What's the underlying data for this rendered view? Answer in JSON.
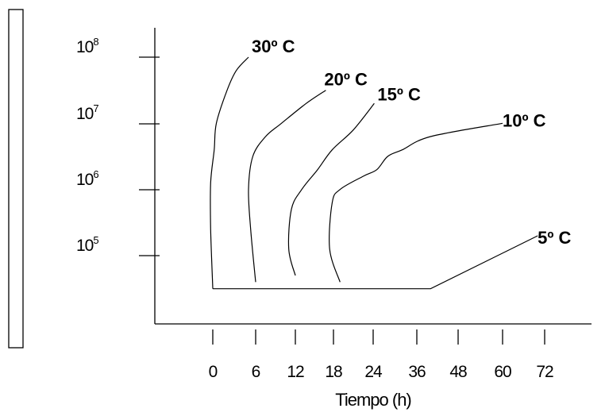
{
  "chart_data": {
    "type": "line",
    "xlabel": "Tiempo (h)",
    "ylabel": "",
    "x_ticks": [
      "0",
      "6",
      "12",
      "18",
      "24",
      "36",
      "48",
      "60",
      "72"
    ],
    "y_ticks": [
      {
        "base": "10",
        "exp": "8"
      },
      {
        "base": "10",
        "exp": "7"
      },
      {
        "base": "10",
        "exp": "6"
      },
      {
        "base": "10",
        "exp": "5"
      }
    ],
    "y_scale": "log",
    "initial_level_log10": 4.5,
    "series": [
      {
        "name": "30º C",
        "points": [
          [
            0,
            4.5
          ],
          [
            -0.3,
            5.4
          ],
          [
            -0.3,
            6.1
          ],
          [
            0.2,
            6.6
          ],
          [
            0.5,
            7.0
          ],
          [
            2.0,
            7.5
          ],
          [
            3.3,
            7.8
          ],
          [
            5.0,
            8.0
          ]
        ]
      },
      {
        "name": "20º C",
        "points": [
          [
            6,
            4.6
          ],
          [
            5.3,
            5.4
          ],
          [
            5.0,
            6.0
          ],
          [
            5.6,
            6.5
          ],
          [
            7.5,
            6.8
          ],
          [
            9.9,
            7.0
          ],
          [
            13.7,
            7.3
          ],
          [
            16.8,
            7.5
          ]
        ]
      },
      {
        "name": "15º C",
        "points": [
          [
            12,
            4.7
          ],
          [
            11.0,
            5.1
          ],
          [
            11.4,
            5.7
          ],
          [
            13.0,
            6.0
          ],
          [
            15.5,
            6.3
          ],
          [
            17.8,
            6.6
          ],
          [
            21.0,
            6.9
          ],
          [
            24.3,
            7.3
          ]
        ]
      },
      {
        "name": "10º C",
        "points": [
          [
            19,
            4.6
          ],
          [
            17.4,
            5.1
          ],
          [
            17.8,
            5.8
          ],
          [
            19.0,
            6.0
          ],
          [
            22.5,
            6.2
          ],
          [
            25.0,
            6.3
          ],
          [
            28.0,
            6.5
          ],
          [
            32.0,
            6.6
          ],
          [
            40.0,
            6.8
          ],
          [
            60.0,
            7.0
          ]
        ]
      },
      {
        "name": "5º C",
        "points": [
          [
            0,
            4.5
          ],
          [
            40.0,
            4.5
          ],
          [
            70.0,
            5.3
          ]
        ]
      }
    ]
  }
}
